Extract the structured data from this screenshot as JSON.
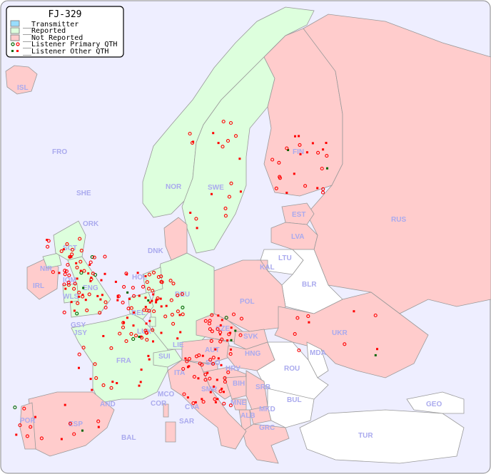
{
  "title": "FJ-329",
  "legend": {
    "items": [
      {
        "label": "__Transmitter",
        "color": "#99ddff"
      },
      {
        "label": "__Reported",
        "color": "#ddffdd"
      },
      {
        "label": "__Not Reported",
        "color": "#ffcccc"
      },
      {
        "label": "__Listener Primary QTH",
        "color": "#ff0000",
        "alt_color": "#006600"
      },
      {
        "label": "__Listener Other QTH",
        "color": "#ff0000",
        "alt_color": "#006600"
      }
    ]
  },
  "colors": {
    "sea": "#eeeeff",
    "reported": "#ddffdd",
    "not_reported": "#ffcccc",
    "no_data": "#ffffff",
    "label": "#aaaaee",
    "border": "#999999"
  },
  "countries": {
    "reported": [
      "NOR",
      "SWE",
      "DEU",
      "HOL",
      "BEL",
      "LUX",
      "FRA",
      "SUI",
      "LIE",
      "ENG",
      "SCT",
      "WLS",
      "NIR",
      "IOM",
      "GSY",
      "JSY",
      "ORK",
      "SHE",
      "FRO"
    ],
    "not_reported": [
      "ISL",
      "FIN",
      "RUS",
      "EST",
      "LVA",
      "POL",
      "CZE",
      "SVK",
      "AUT",
      "HNG",
      "UKR",
      "DNK",
      "IRL",
      "ITA",
      "ESP",
      "POR",
      "AND",
      "SLO",
      "HRV",
      "BIH",
      "SRB",
      "MNE",
      "ALB",
      "MKD",
      "GRC",
      "KAL",
      "CVA",
      "SMR",
      "MCO",
      "COR",
      "SAR",
      "BAL"
    ],
    "no_data": [
      "LTU",
      "BLR",
      "MDA",
      "ROU",
      "BUL",
      "TUR",
      "GEO"
    ]
  },
  "labels": [
    "ISL",
    "FRO",
    "SHE",
    "ORK",
    "NOR",
    "SWE",
    "FIN",
    "EST",
    "RUS",
    "LVA",
    "LTU",
    "KAL",
    "BLR",
    "DNK",
    "HOL",
    "DEU",
    "POL",
    "UKR",
    "IRL",
    "NIR",
    "SCT",
    "IOM",
    "WLS",
    "ENG",
    "GSY",
    "JSY",
    "BEL",
    "LUX",
    "CZE",
    "SVK",
    "MDA",
    "FRA",
    "SUI",
    "LIE",
    "AUT",
    "HNG",
    "ROU",
    "SLO",
    "HRV",
    "ITA",
    "SMR",
    "BIH",
    "SRB",
    "MCO",
    "COR",
    "CVA",
    "MNE",
    "ALB",
    "MKD",
    "BUL",
    "GEO",
    "AND",
    "POR",
    "ESP",
    "SAR",
    "GRC",
    "TUR",
    "BAL"
  ]
}
